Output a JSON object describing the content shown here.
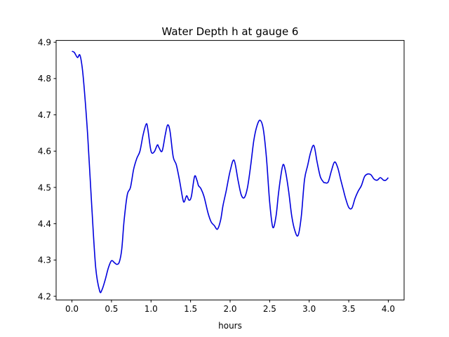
{
  "chart_data": {
    "type": "line",
    "title": "Water Depth h at gauge 6",
    "xlabel": "hours",
    "ylabel": "",
    "xlim": [
      -0.2,
      4.2
    ],
    "ylim": [
      4.19,
      4.905
    ],
    "xticks": [
      0.0,
      0.5,
      1.0,
      1.5,
      2.0,
      2.5,
      3.0,
      3.5,
      4.0
    ],
    "xtick_labels": [
      "0.0",
      "0.5",
      "1.0",
      "1.5",
      "2.0",
      "2.5",
      "3.0",
      "3.5",
      "4.0"
    ],
    "yticks": [
      4.2,
      4.3,
      4.4,
      4.5,
      4.6,
      4.7,
      4.8,
      4.9
    ],
    "ytick_labels": [
      "4.2",
      "4.3",
      "4.4",
      "4.5",
      "4.6",
      "4.7",
      "4.8",
      "4.9"
    ],
    "grid": false,
    "series": [
      {
        "color": "#0000dd",
        "x": [
          0.0,
          0.03,
          0.07,
          0.1,
          0.13,
          0.16,
          0.2,
          0.25,
          0.3,
          0.35,
          0.38,
          0.42,
          0.46,
          0.5,
          0.54,
          0.57,
          0.6,
          0.63,
          0.66,
          0.7,
          0.74,
          0.78,
          0.82,
          0.86,
          0.9,
          0.94,
          0.96,
          1.0,
          1.04,
          1.08,
          1.1,
          1.14,
          1.18,
          1.21,
          1.24,
          1.28,
          1.32,
          1.36,
          1.4,
          1.42,
          1.45,
          1.48,
          1.51,
          1.55,
          1.58,
          1.6,
          1.63,
          1.67,
          1.72,
          1.76,
          1.8,
          1.84,
          1.88,
          1.91,
          1.95,
          2.0,
          2.05,
          2.1,
          2.14,
          2.18,
          2.22,
          2.26,
          2.3,
          2.34,
          2.38,
          2.42,
          2.46,
          2.5,
          2.54,
          2.58,
          2.61,
          2.64,
          2.67,
          2.7,
          2.74,
          2.78,
          2.82,
          2.86,
          2.9,
          2.94,
          2.98,
          3.02,
          3.06,
          3.1,
          3.14,
          3.18,
          3.2,
          3.24,
          3.28,
          3.32,
          3.36,
          3.4,
          3.43,
          3.46,
          3.5,
          3.54,
          3.58,
          3.62,
          3.66,
          3.7,
          3.74,
          3.78,
          3.82,
          3.86,
          3.9,
          3.94,
          3.97,
          4.0
        ],
        "y": [
          4.875,
          4.872,
          4.858,
          4.865,
          4.83,
          4.76,
          4.64,
          4.45,
          4.28,
          4.215,
          4.218,
          4.245,
          4.278,
          4.298,
          4.292,
          4.288,
          4.295,
          4.33,
          4.41,
          4.48,
          4.5,
          4.55,
          4.58,
          4.6,
          4.645,
          4.675,
          4.66,
          4.6,
          4.598,
          4.617,
          4.61,
          4.6,
          4.645,
          4.672,
          4.655,
          4.585,
          4.562,
          4.52,
          4.47,
          4.46,
          4.477,
          4.465,
          4.475,
          4.53,
          4.52,
          4.505,
          4.497,
          4.475,
          4.43,
          4.405,
          4.395,
          4.385,
          4.41,
          4.45,
          4.49,
          4.545,
          4.575,
          4.52,
          4.48,
          4.472,
          4.5,
          4.56,
          4.63,
          4.67,
          4.685,
          4.66,
          4.58,
          4.46,
          4.39,
          4.42,
          4.48,
          4.53,
          4.563,
          4.545,
          4.49,
          4.42,
          4.38,
          4.368,
          4.42,
          4.52,
          4.56,
          4.598,
          4.615,
          4.57,
          4.53,
          4.515,
          4.513,
          4.515,
          4.545,
          4.57,
          4.555,
          4.52,
          4.495,
          4.47,
          4.445,
          4.443,
          4.47,
          4.49,
          4.505,
          4.53,
          4.537,
          4.535,
          4.523,
          4.52,
          4.527,
          4.52,
          4.52,
          4.527
        ]
      }
    ]
  }
}
